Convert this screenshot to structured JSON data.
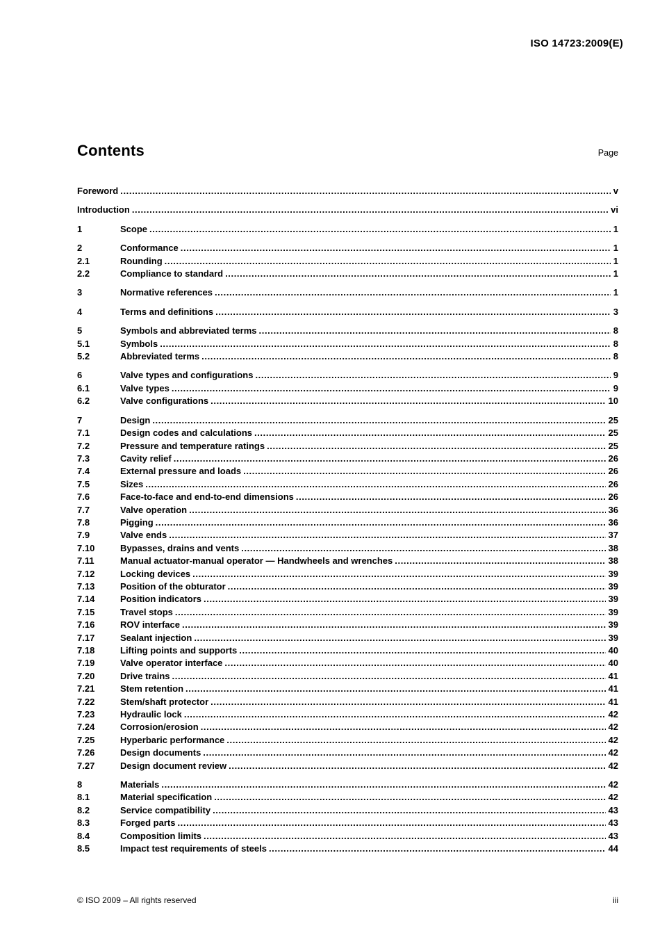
{
  "header": {
    "doc_ref": "ISO 14723:2009(E)"
  },
  "contents": {
    "title": "Contents",
    "page_label": "Page"
  },
  "toc": {
    "groups": [
      {
        "entries": [
          {
            "num": "",
            "title": "Foreword",
            "page": "v"
          }
        ]
      },
      {
        "entries": [
          {
            "num": "",
            "title": "Introduction",
            "page": "vi"
          }
        ]
      },
      {
        "entries": [
          {
            "num": "1",
            "title": "Scope",
            "page": "1"
          }
        ]
      },
      {
        "entries": [
          {
            "num": "2",
            "title": "Conformance",
            "page": "1"
          },
          {
            "num": "2.1",
            "title": "Rounding",
            "page": "1"
          },
          {
            "num": "2.2",
            "title": "Compliance to standard",
            "page": "1"
          }
        ]
      },
      {
        "entries": [
          {
            "num": "3",
            "title": "Normative references",
            "page": "1"
          }
        ]
      },
      {
        "entries": [
          {
            "num": "4",
            "title": "Terms and definitions",
            "page": "3"
          }
        ]
      },
      {
        "entries": [
          {
            "num": "5",
            "title": "Symbols and abbreviated terms",
            "page": "8"
          },
          {
            "num": "5.1",
            "title": "Symbols",
            "page": "8"
          },
          {
            "num": "5.2",
            "title": "Abbreviated terms",
            "page": "8"
          }
        ]
      },
      {
        "entries": [
          {
            "num": "6",
            "title": "Valve types and configurations",
            "page": "9"
          },
          {
            "num": "6.1",
            "title": "Valve types",
            "page": "9"
          },
          {
            "num": "6.2",
            "title": "Valve configurations",
            "page": "10"
          }
        ]
      },
      {
        "entries": [
          {
            "num": "7",
            "title": "Design",
            "page": "25"
          },
          {
            "num": "7.1",
            "title": "Design codes and calculations",
            "page": "25"
          },
          {
            "num": "7.2",
            "title": "Pressure and temperature ratings",
            "page": "25"
          },
          {
            "num": "7.3",
            "title": "Cavity relief",
            "page": "26"
          },
          {
            "num": "7.4",
            "title": "External pressure and loads",
            "page": "26"
          },
          {
            "num": "7.5",
            "title": "Sizes",
            "page": "26"
          },
          {
            "num": "7.6",
            "title": "Face-to-face and end-to-end dimensions",
            "page": "26"
          },
          {
            "num": "7.7",
            "title": "Valve operation",
            "page": "36"
          },
          {
            "num": "7.8",
            "title": "Pigging",
            "page": "36"
          },
          {
            "num": "7.9",
            "title": "Valve ends",
            "page": "37"
          },
          {
            "num": "7.10",
            "title": "Bypasses, drains and vents",
            "page": "38"
          },
          {
            "num": "7.11",
            "title": "Manual actuator-manual operator — Handwheels and wrenches",
            "page": "38"
          },
          {
            "num": "7.12",
            "title": "Locking devices",
            "page": "39"
          },
          {
            "num": "7.13",
            "title": "Position of the obturator",
            "page": "39"
          },
          {
            "num": "7.14",
            "title": "Position indicators",
            "page": "39"
          },
          {
            "num": "7.15",
            "title": "Travel stops",
            "page": "39"
          },
          {
            "num": "7.16",
            "title": "ROV interface",
            "page": "39"
          },
          {
            "num": "7.17",
            "title": "Sealant injection",
            "page": "39"
          },
          {
            "num": "7.18",
            "title": "Lifting points and supports",
            "page": "40"
          },
          {
            "num": "7.19",
            "title": "Valve operator interface",
            "page": "40"
          },
          {
            "num": "7.20",
            "title": "Drive trains",
            "page": "41"
          },
          {
            "num": "7.21",
            "title": "Stem retention",
            "page": "41"
          },
          {
            "num": "7.22",
            "title": "Stem/shaft protector",
            "page": "41"
          },
          {
            "num": "7.23",
            "title": "Hydraulic lock",
            "page": "42"
          },
          {
            "num": "7.24",
            "title": "Corrosion/erosion",
            "page": "42"
          },
          {
            "num": "7.25",
            "title": "Hyperbaric performance",
            "page": "42"
          },
          {
            "num": "7.26",
            "title": "Design documents",
            "page": "42"
          },
          {
            "num": "7.27",
            "title": "Design document review",
            "page": "42"
          }
        ]
      },
      {
        "entries": [
          {
            "num": "8",
            "title": "Materials",
            "page": "42"
          },
          {
            "num": "8.1",
            "title": "Material specification",
            "page": "42"
          },
          {
            "num": "8.2",
            "title": "Service compatibility",
            "page": "43"
          },
          {
            "num": "8.3",
            "title": "Forged parts",
            "page": "43"
          },
          {
            "num": "8.4",
            "title": "Composition limits",
            "page": "43"
          },
          {
            "num": "8.5",
            "title": "Impact test requirements of steels",
            "page": "44"
          }
        ]
      }
    ]
  },
  "footer": {
    "copyright": "© ISO 2009 – All rights reserved",
    "page_number": "iii"
  }
}
